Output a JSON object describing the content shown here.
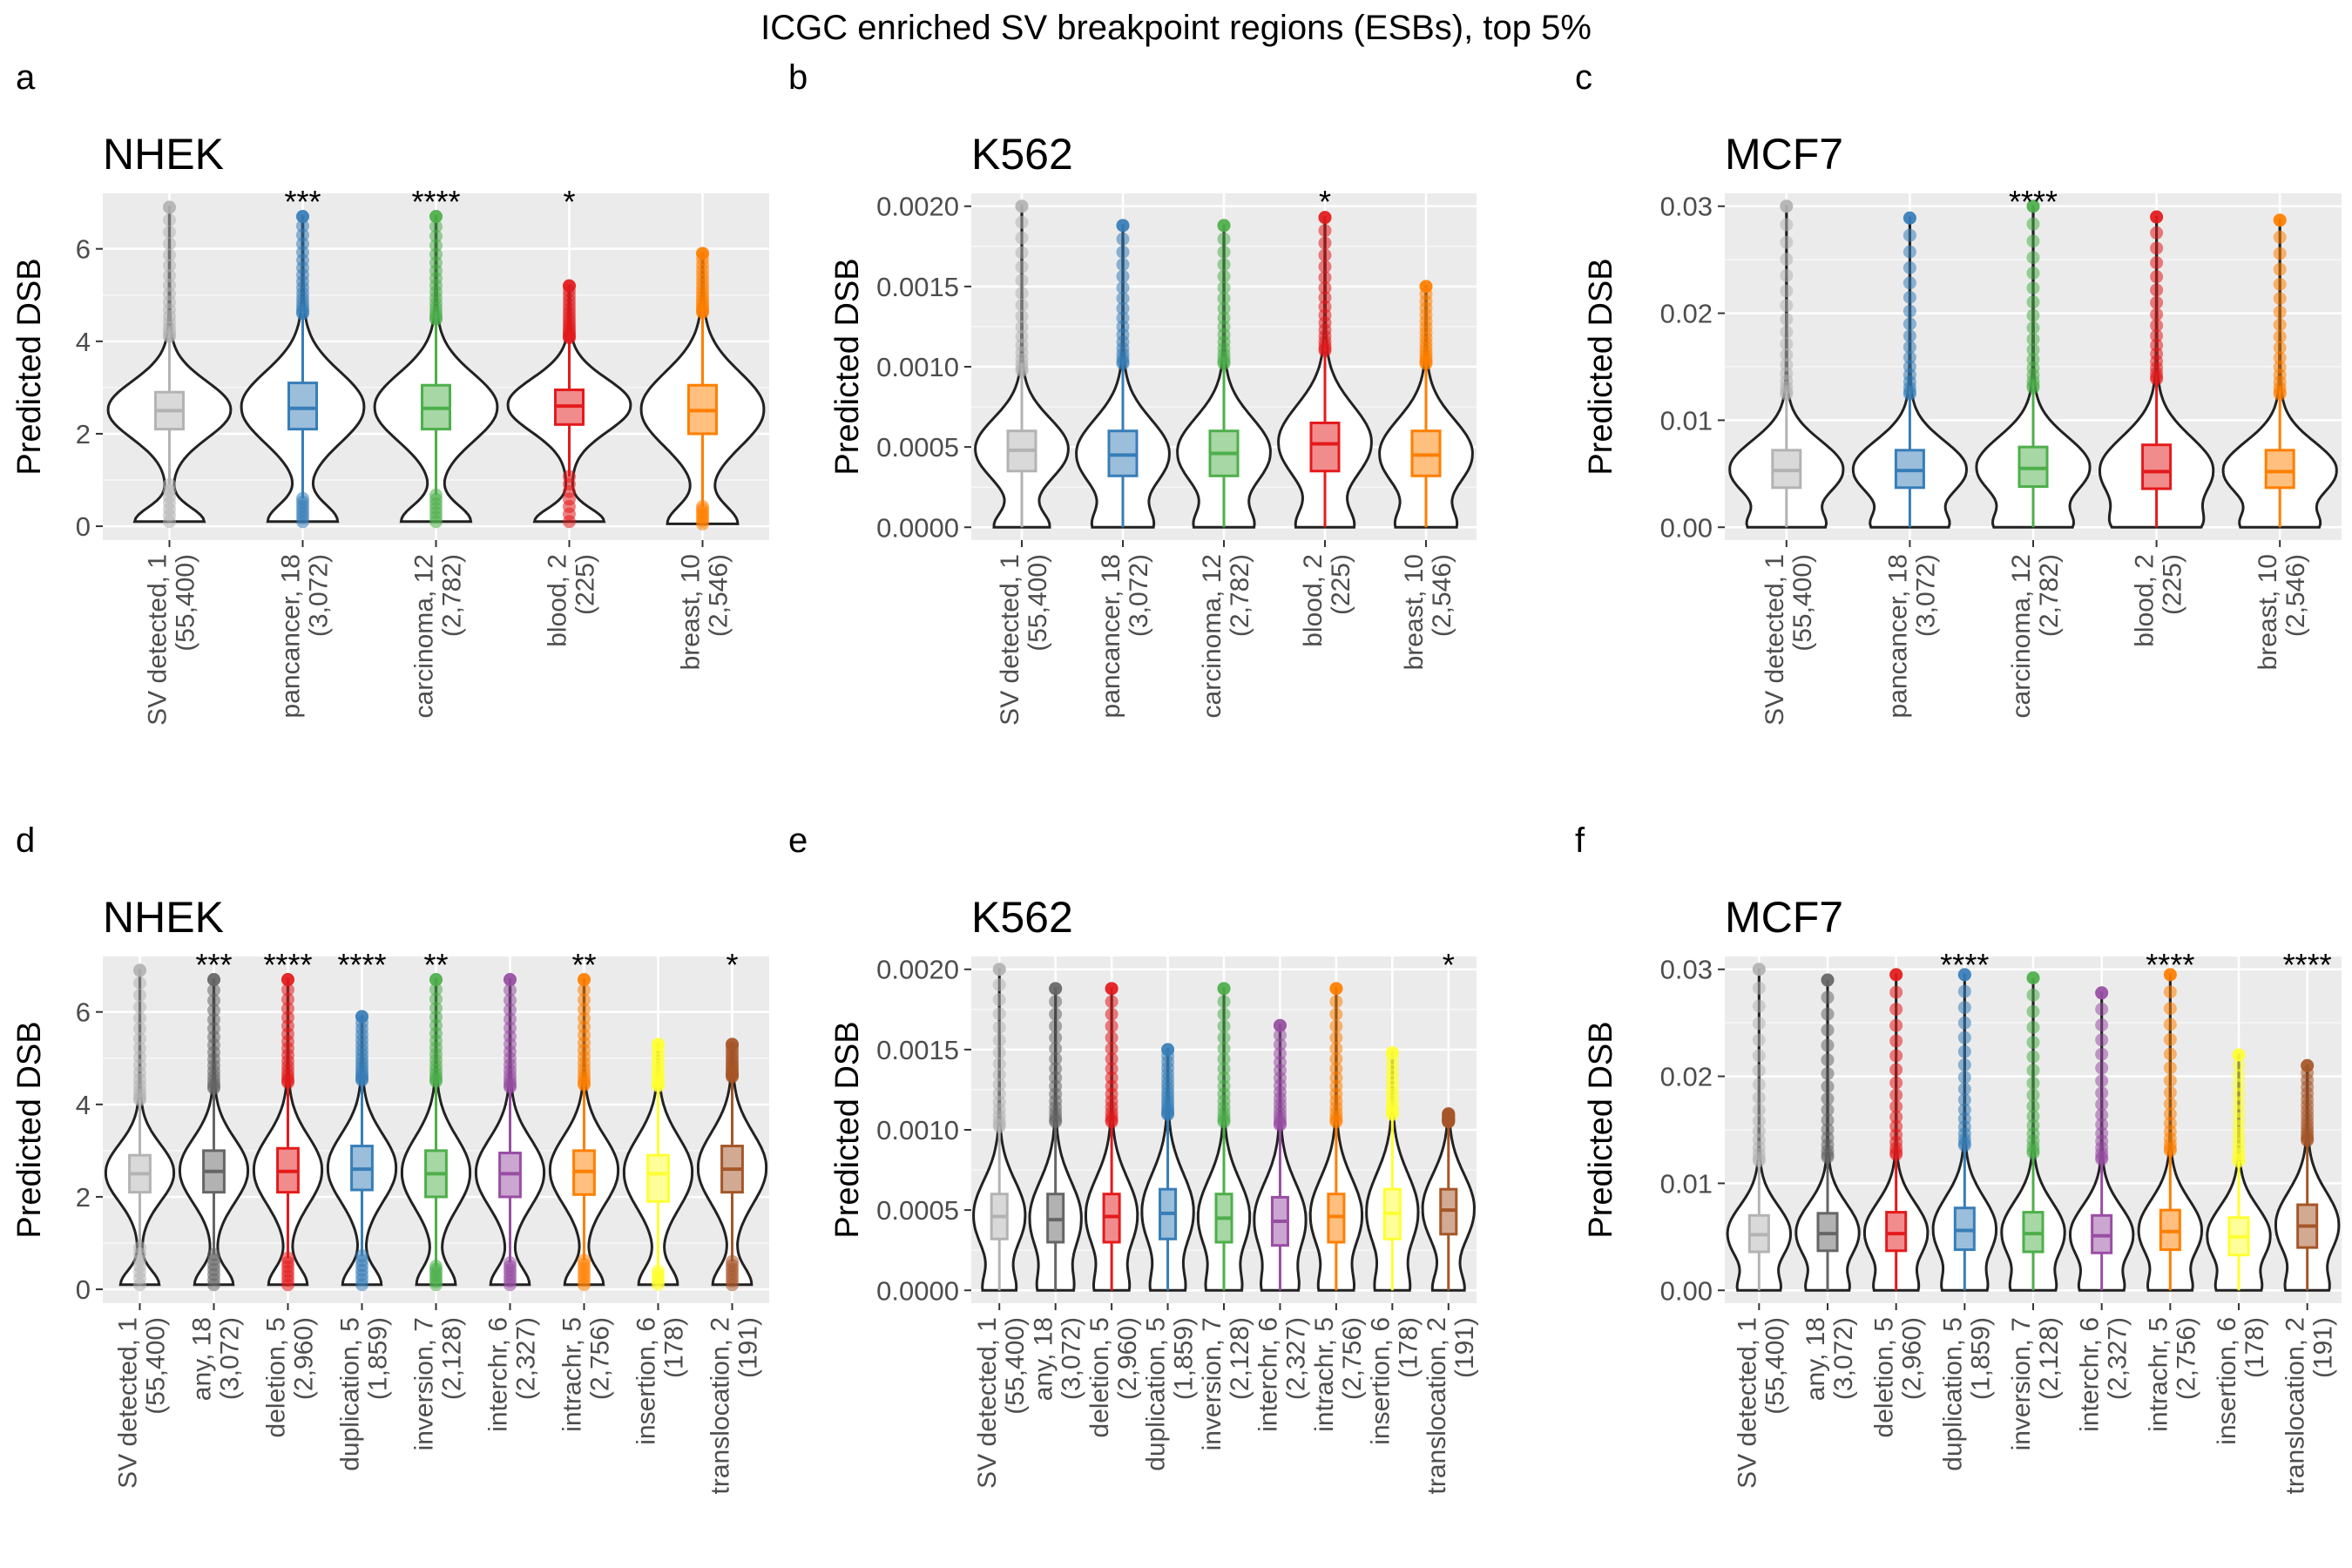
{
  "figure_title": "ICGC enriched SV breakpoint regions (ESBs), top 5%",
  "colors": {
    "SV detected": "#b3b3b3",
    "any": "#666666",
    "deletion": "#e41a1c",
    "duplication": "#377eb8",
    "inversion": "#4daf4a",
    "interchr": "#984ea3",
    "intrachr": "#ff7f00",
    "insertion": "#ffff33",
    "translocation": "#a65628",
    "pancancer": "#377eb8",
    "carcinoma": "#4daf4a",
    "blood": "#e41a1c",
    "breast": "#ff7f00"
  },
  "chart_data": [
    {
      "panel": "a",
      "type": "violin",
      "title": "NHEK",
      "ylabel": "Predicted DSB",
      "ylim": [
        -0.3,
        7.2
      ],
      "yticks": [
        0,
        2,
        4,
        6
      ],
      "tick_labels": [
        "0",
        "2",
        "4",
        "6"
      ],
      "categories": [
        {
          "name": "SV detected",
          "line1": "SV detected, 1",
          "line2": "(55,400)",
          "stats": [
            0.1,
            2.1,
            2.5,
            2.9,
            6.9
          ],
          "sig": ""
        },
        {
          "name": "pancancer",
          "line1": "pancancer, 18",
          "line2": "(3,072)",
          "stats": [
            0.1,
            2.1,
            2.55,
            3.1,
            6.7
          ],
          "sig": "***"
        },
        {
          "name": "carcinoma",
          "line1": "carcinoma, 12",
          "line2": "(2,782)",
          "stats": [
            0.1,
            2.1,
            2.55,
            3.05,
            6.7
          ],
          "sig": "****"
        },
        {
          "name": "blood",
          "line1": "blood, 2",
          "line2": "(225)",
          "stats": [
            0.1,
            2.2,
            2.6,
            2.95,
            5.2
          ],
          "sig": "*"
        },
        {
          "name": "breast",
          "line1": "breast, 10",
          "line2": "(2,546)",
          "stats": [
            0.05,
            2.0,
            2.5,
            3.05,
            5.9
          ],
          "sig": ""
        }
      ]
    },
    {
      "panel": "b",
      "type": "violin",
      "title": "K562",
      "ylabel": "Predicted DSB",
      "ylim": [
        -8e-05,
        0.00208
      ],
      "yticks": [
        0,
        0.0005,
        0.001,
        0.0015,
        0.002
      ],
      "tick_labels": [
        "0.0000",
        "0.0005",
        "0.0010",
        "0.0015",
        "0.0020"
      ],
      "categories": [
        {
          "name": "SV detected",
          "line1": "SV detected, 1",
          "line2": "(55,400)",
          "stats": [
            0,
            0.00035,
            0.00048,
            0.0006,
            0.002
          ],
          "sig": ""
        },
        {
          "name": "pancancer",
          "line1": "pancancer, 18",
          "line2": "(3,072)",
          "stats": [
            0,
            0.00032,
            0.00045,
            0.0006,
            0.00188
          ],
          "sig": ""
        },
        {
          "name": "carcinoma",
          "line1": "carcinoma, 12",
          "line2": "(2,782)",
          "stats": [
            0,
            0.00032,
            0.00046,
            0.0006,
            0.00188
          ],
          "sig": ""
        },
        {
          "name": "blood",
          "line1": "blood, 2",
          "line2": "(225)",
          "stats": [
            0,
            0.00035,
            0.00052,
            0.00065,
            0.00193
          ],
          "sig": "*"
        },
        {
          "name": "breast",
          "line1": "breast, 10",
          "line2": "(2,546)",
          "stats": [
            0,
            0.00032,
            0.00045,
            0.0006,
            0.0015
          ],
          "sig": ""
        }
      ]
    },
    {
      "panel": "c",
      "type": "violin",
      "title": "MCF7",
      "ylabel": "Predicted DSB",
      "ylim": [
        -0.0012,
        0.0312
      ],
      "yticks": [
        0,
        0.01,
        0.02,
        0.03
      ],
      "tick_labels": [
        "0.00",
        "0.01",
        "0.02",
        "0.03"
      ],
      "categories": [
        {
          "name": "SV detected",
          "line1": "SV detected, 1",
          "line2": "(55,400)",
          "stats": [
            0,
            0.0037,
            0.0053,
            0.0072,
            0.03
          ],
          "sig": ""
        },
        {
          "name": "pancancer",
          "line1": "pancancer, 18",
          "line2": "(3,072)",
          "stats": [
            0,
            0.0037,
            0.0053,
            0.0072,
            0.0289
          ],
          "sig": ""
        },
        {
          "name": "carcinoma",
          "line1": "carcinoma, 12",
          "line2": "(2,782)",
          "stats": [
            0,
            0.0038,
            0.0055,
            0.0075,
            0.03
          ],
          "sig": "****"
        },
        {
          "name": "blood",
          "line1": "blood, 2",
          "line2": "(225)",
          "stats": [
            0,
            0.0036,
            0.0052,
            0.0077,
            0.029
          ],
          "sig": ""
        },
        {
          "name": "breast",
          "line1": "breast, 10",
          "line2": "(2,546)",
          "stats": [
            0,
            0.0037,
            0.0052,
            0.0072,
            0.0287
          ],
          "sig": ""
        }
      ]
    },
    {
      "panel": "d",
      "type": "violin",
      "title": "NHEK",
      "ylabel": "Predicted DSB",
      "ylim": [
        -0.3,
        7.2
      ],
      "yticks": [
        0,
        2,
        4,
        6
      ],
      "tick_labels": [
        "0",
        "2",
        "4",
        "6"
      ],
      "categories": [
        {
          "name": "SV detected",
          "line1": "SV detected, 1",
          "line2": "(55,400)",
          "stats": [
            0.1,
            2.1,
            2.5,
            2.9,
            6.9
          ],
          "sig": ""
        },
        {
          "name": "any",
          "line1": "any, 18",
          "line2": "(3,072)",
          "stats": [
            0.1,
            2.1,
            2.55,
            3.0,
            6.7
          ],
          "sig": "***"
        },
        {
          "name": "deletion",
          "line1": "deletion, 5",
          "line2": "(2,960)",
          "stats": [
            0.1,
            2.1,
            2.55,
            3.05,
            6.7
          ],
          "sig": "****"
        },
        {
          "name": "duplication",
          "line1": "duplication, 5",
          "line2": "(1,859)",
          "stats": [
            0.1,
            2.15,
            2.6,
            3.1,
            5.9
          ],
          "sig": "****"
        },
        {
          "name": "inversion",
          "line1": "inversion, 7",
          "line2": "(2,128)",
          "stats": [
            0.1,
            2.0,
            2.5,
            3.0,
            6.7
          ],
          "sig": "**"
        },
        {
          "name": "interchr",
          "line1": "interchr, 6",
          "line2": "(2,327)",
          "stats": [
            0.1,
            2.0,
            2.5,
            2.95,
            6.7
          ],
          "sig": ""
        },
        {
          "name": "intrachr",
          "line1": "intrachr, 5",
          "line2": "(2,756)",
          "stats": [
            0.1,
            2.05,
            2.55,
            3.0,
            6.7
          ],
          "sig": "**"
        },
        {
          "name": "insertion",
          "line1": "insertion, 6",
          "line2": "(178)",
          "stats": [
            0.1,
            1.9,
            2.5,
            2.9,
            5.3
          ],
          "sig": ""
        },
        {
          "name": "translocation",
          "line1": "translocation, 2",
          "line2": "(191)",
          "stats": [
            0.1,
            2.1,
            2.6,
            3.1,
            5.3
          ],
          "sig": "*"
        }
      ]
    },
    {
      "panel": "e",
      "type": "violin",
      "title": "K562",
      "ylabel": "Predicted DSB",
      "ylim": [
        -8e-05,
        0.00208
      ],
      "yticks": [
        0,
        0.0005,
        0.001,
        0.0015,
        0.002
      ],
      "tick_labels": [
        "0.0000",
        "0.0005",
        "0.0010",
        "0.0015",
        "0.0020"
      ],
      "categories": [
        {
          "name": "SV detected",
          "line1": "SV detected, 1",
          "line2": "(55,400)",
          "stats": [
            0,
            0.00032,
            0.00046,
            0.0006,
            0.002
          ],
          "sig": ""
        },
        {
          "name": "any",
          "line1": "any, 18",
          "line2": "(3,072)",
          "stats": [
            0,
            0.0003,
            0.00044,
            0.0006,
            0.00188
          ],
          "sig": ""
        },
        {
          "name": "deletion",
          "line1": "deletion, 5",
          "line2": "(2,960)",
          "stats": [
            0,
            0.0003,
            0.00046,
            0.0006,
            0.00188
          ],
          "sig": ""
        },
        {
          "name": "duplication",
          "line1": "duplication, 5",
          "line2": "(1,859)",
          "stats": [
            0,
            0.00032,
            0.00048,
            0.00063,
            0.0015
          ],
          "sig": ""
        },
        {
          "name": "inversion",
          "line1": "inversion, 7",
          "line2": "(2,128)",
          "stats": [
            0,
            0.0003,
            0.00045,
            0.0006,
            0.00188
          ],
          "sig": ""
        },
        {
          "name": "interchr",
          "line1": "interchr, 6",
          "line2": "(2,327)",
          "stats": [
            0,
            0.00028,
            0.00043,
            0.00058,
            0.00165
          ],
          "sig": ""
        },
        {
          "name": "intrachr",
          "line1": "intrachr, 5",
          "line2": "(2,756)",
          "stats": [
            0,
            0.0003,
            0.00046,
            0.0006,
            0.00188
          ],
          "sig": ""
        },
        {
          "name": "insertion",
          "line1": "insertion, 6",
          "line2": "(178)",
          "stats": [
            0,
            0.00032,
            0.00048,
            0.00063,
            0.00148
          ],
          "sig": ""
        },
        {
          "name": "translocation",
          "line1": "translocation, 2",
          "line2": "(191)",
          "stats": [
            0,
            0.00035,
            0.0005,
            0.00063,
            0.0011
          ],
          "sig": "*"
        }
      ]
    },
    {
      "panel": "f",
      "type": "violin",
      "title": "MCF7",
      "ylabel": "Predicted DSB",
      "ylim": [
        -0.0012,
        0.0312
      ],
      "yticks": [
        0,
        0.01,
        0.02,
        0.03
      ],
      "tick_labels": [
        "0.00",
        "0.01",
        "0.02",
        "0.03"
      ],
      "categories": [
        {
          "name": "SV detected",
          "line1": "SV detected, 1",
          "line2": "(55,400)",
          "stats": [
            0,
            0.0036,
            0.0052,
            0.007,
            0.03
          ],
          "sig": ""
        },
        {
          "name": "any",
          "line1": "any, 18",
          "line2": "(3,072)",
          "stats": [
            0,
            0.0037,
            0.0053,
            0.0072,
            0.029
          ],
          "sig": ""
        },
        {
          "name": "deletion",
          "line1": "deletion, 5",
          "line2": "(2,960)",
          "stats": [
            0,
            0.0037,
            0.0053,
            0.0073,
            0.0295
          ],
          "sig": ""
        },
        {
          "name": "duplication",
          "line1": "duplication, 5",
          "line2": "(1,859)",
          "stats": [
            0,
            0.0038,
            0.0056,
            0.0077,
            0.0295
          ],
          "sig": "****"
        },
        {
          "name": "inversion",
          "line1": "inversion, 7",
          "line2": "(2,128)",
          "stats": [
            0,
            0.0036,
            0.0053,
            0.0073,
            0.0292
          ],
          "sig": ""
        },
        {
          "name": "interchr",
          "line1": "interchr, 6",
          "line2": "(2,327)",
          "stats": [
            0,
            0.0035,
            0.0051,
            0.007,
            0.0278
          ],
          "sig": ""
        },
        {
          "name": "intrachr",
          "line1": "intrachr, 5",
          "line2": "(2,756)",
          "stats": [
            0,
            0.0038,
            0.0055,
            0.0075,
            0.0295
          ],
          "sig": "****"
        },
        {
          "name": "insertion",
          "line1": "insertion, 6",
          "line2": "(178)",
          "stats": [
            0,
            0.0033,
            0.005,
            0.0068,
            0.022
          ],
          "sig": ""
        },
        {
          "name": "translocation",
          "line1": "translocation, 2",
          "line2": "(191)",
          "stats": [
            0,
            0.004,
            0.006,
            0.008,
            0.021
          ],
          "sig": "****"
        }
      ]
    }
  ]
}
